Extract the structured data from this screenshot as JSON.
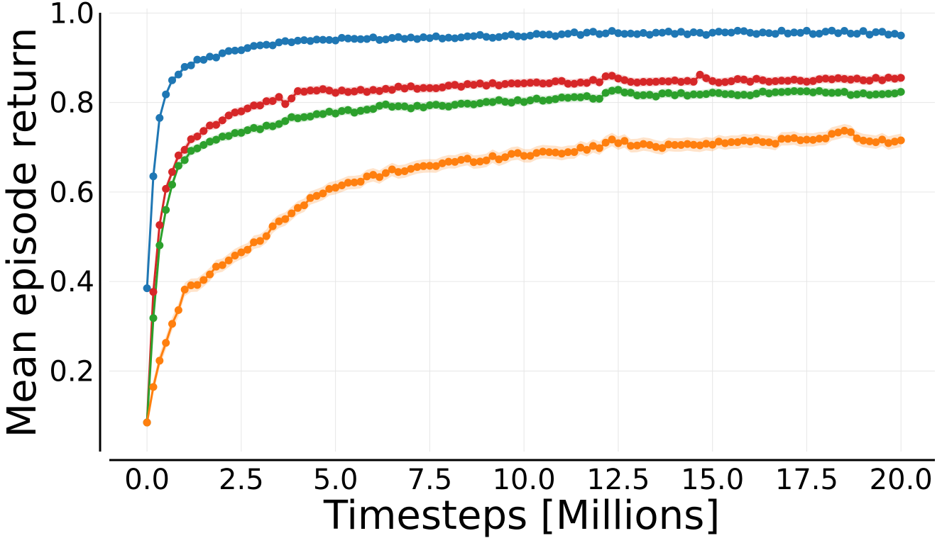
{
  "chart_data": {
    "type": "line",
    "title": "",
    "xlabel": "Timesteps [Millions]",
    "ylabel": "Mean episode return",
    "xlim": [
      -1.0,
      20.9
    ],
    "ylim": [
      0.02,
      1.01
    ],
    "xticks": [
      0.0,
      2.5,
      5.0,
      7.5,
      10.0,
      12.5,
      15.0,
      17.5,
      20.0
    ],
    "xtick_labels": [
      "0.0",
      "2.5",
      "5.0",
      "7.5",
      "10.0",
      "12.5",
      "15.0",
      "17.5",
      "20.0"
    ],
    "yticks": [
      0.2,
      0.4,
      0.6,
      0.8,
      1.0
    ],
    "ytick_labels": [
      "0.2",
      "0.4",
      "0.6",
      "0.8",
      "1.0"
    ],
    "grid": true,
    "legend": "none",
    "series": [
      {
        "color": "#1f77b4",
        "x": [
          0,
          0.15,
          0.3,
          0.5,
          0.65,
          0.8,
          1.0,
          1.2,
          1.5,
          1.8,
          2.0,
          2.3,
          2.5,
          2.8,
          3.0,
          3.5,
          4.0,
          4.5,
          5.0,
          6.0,
          7.0,
          8.0,
          9.0,
          10.0,
          11.0,
          12.0,
          12.3,
          13.0,
          14.0,
          15.0,
          16.0,
          17.0,
          18.0,
          19.0,
          20.0
        ],
        "y": [
          0.385,
          0.62,
          0.755,
          0.818,
          0.848,
          0.863,
          0.877,
          0.888,
          0.897,
          0.903,
          0.912,
          0.915,
          0.92,
          0.925,
          0.928,
          0.932,
          0.938,
          0.94,
          0.94,
          0.943,
          0.945,
          0.947,
          0.948,
          0.95,
          0.952,
          0.955,
          0.958,
          0.953,
          0.955,
          0.955,
          0.957,
          0.957,
          0.957,
          0.956,
          0.953
        ],
        "band": 0.006
      },
      {
        "color": "#d62728",
        "x": [
          0,
          0.15,
          0.3,
          0.5,
          0.65,
          0.8,
          1.0,
          1.2,
          1.5,
          2.0,
          2.5,
          3.0,
          3.5,
          3.7,
          4.0,
          4.5,
          5.0,
          6.0,
          7.0,
          8.0,
          8.5,
          9.0,
          10.0,
          11.0,
          12.0,
          12.3,
          13.0,
          14.0,
          14.5,
          14.7,
          15.0,
          16.0,
          17.0,
          18.0,
          19.0,
          20.0
        ],
        "y": [
          0.085,
          0.36,
          0.51,
          0.607,
          0.64,
          0.682,
          0.698,
          0.718,
          0.737,
          0.76,
          0.782,
          0.795,
          0.81,
          0.795,
          0.822,
          0.828,
          0.825,
          0.828,
          0.833,
          0.835,
          0.838,
          0.84,
          0.843,
          0.845,
          0.847,
          0.862,
          0.845,
          0.848,
          0.845,
          0.865,
          0.848,
          0.85,
          0.85,
          0.85,
          0.852,
          0.852
        ],
        "band": 0.01
      },
      {
        "color": "#2ca02c",
        "x": [
          0,
          0.15,
          0.3,
          0.5,
          0.65,
          0.8,
          1.0,
          1.2,
          1.5,
          2.0,
          2.5,
          3.0,
          3.5,
          4.0,
          4.5,
          5.0,
          6.0,
          6.3,
          7.0,
          8.0,
          9.0,
          10.0,
          11.0,
          12.0,
          12.3,
          13.0,
          14.0,
          15.0,
          16.0,
          17.0,
          18.0,
          19.0,
          20.0
        ],
        "y": [
          0.085,
          0.3,
          0.465,
          0.56,
          0.612,
          0.652,
          0.675,
          0.695,
          0.705,
          0.72,
          0.735,
          0.742,
          0.755,
          0.768,
          0.772,
          0.778,
          0.782,
          0.795,
          0.788,
          0.795,
          0.8,
          0.805,
          0.808,
          0.812,
          0.828,
          0.815,
          0.818,
          0.818,
          0.82,
          0.822,
          0.822,
          0.82,
          0.82
        ],
        "band": 0.01
      },
      {
        "color": "#ff7f0e",
        "x": [
          0,
          0.15,
          0.3,
          0.5,
          0.65,
          0.8,
          1.0,
          1.2,
          1.5,
          2.0,
          2.5,
          3.0,
          3.5,
          4.0,
          4.5,
          5.0,
          5.5,
          6.0,
          6.5,
          7.0,
          7.5,
          8.0,
          9.0,
          10.0,
          11.0,
          12.0,
          12.3,
          13.0,
          14.0,
          14.5,
          15.0,
          16.0,
          17.0,
          18.0,
          18.4,
          19.0,
          20.0
        ],
        "y": [
          0.085,
          0.158,
          0.215,
          0.263,
          0.302,
          0.332,
          0.378,
          0.39,
          0.408,
          0.44,
          0.465,
          0.49,
          0.535,
          0.565,
          0.59,
          0.61,
          0.622,
          0.635,
          0.645,
          0.655,
          0.658,
          0.665,
          0.675,
          0.685,
          0.69,
          0.7,
          0.718,
          0.702,
          0.705,
          0.708,
          0.71,
          0.712,
          0.715,
          0.718,
          0.74,
          0.716,
          0.713
        ],
        "band": 0.015
      }
    ]
  }
}
